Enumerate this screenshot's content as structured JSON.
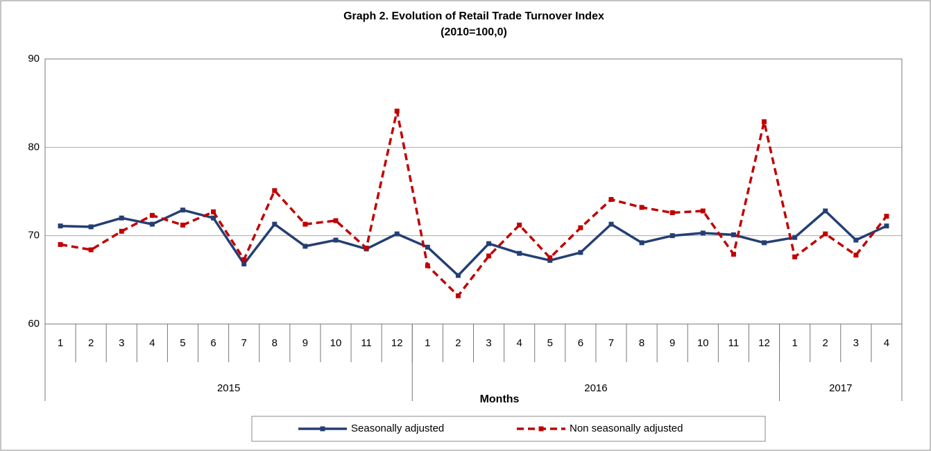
{
  "chart_data": {
    "type": "line",
    "title": "Graph 2. Evolution of Retail Trade Turnover Index",
    "subtitle": "(2010=100,0)",
    "x_label": "Months",
    "categories": [
      "1",
      "2",
      "3",
      "4",
      "5",
      "6",
      "7",
      "8",
      "9",
      "10",
      "11",
      "12",
      "1",
      "2",
      "3",
      "4",
      "5",
      "6",
      "7",
      "8",
      "9",
      "10",
      "11",
      "12",
      "1",
      "2",
      "3",
      "4"
    ],
    "x_groups": [
      {
        "name": "2015",
        "count": 12
      },
      {
        "name": "2016",
        "count": 12
      },
      {
        "name": "2017",
        "count": 4
      }
    ],
    "series": [
      {
        "name": "Seasonally adjusted",
        "color": "#243f73",
        "dashed": false,
        "values": [
          71.1,
          71.0,
          72.0,
          71.3,
          72.9,
          72.0,
          66.8,
          71.3,
          68.8,
          69.5,
          68.5,
          70.2,
          68.7,
          65.5,
          69.1,
          68.0,
          67.2,
          68.1,
          71.3,
          69.2,
          70.0,
          70.3,
          70.1,
          69.2,
          69.8,
          72.8,
          69.5,
          71.1
        ]
      },
      {
        "name": "Non seasonally adjusted",
        "color": "#c00000",
        "dashed": true,
        "values": [
          69.0,
          68.4,
          70.5,
          72.3,
          71.2,
          72.7,
          67.3,
          75.1,
          71.3,
          71.7,
          68.6,
          84.1,
          66.6,
          63.2,
          67.7,
          71.2,
          67.5,
          70.9,
          74.1,
          73.2,
          72.6,
          72.8,
          67.9,
          82.9,
          67.6,
          70.2,
          67.8,
          72.2
        ]
      }
    ],
    "ylim": [
      60,
      90
    ],
    "yticks": [
      60,
      70,
      80,
      90
    ],
    "grid": true,
    "legend": "bottom"
  }
}
